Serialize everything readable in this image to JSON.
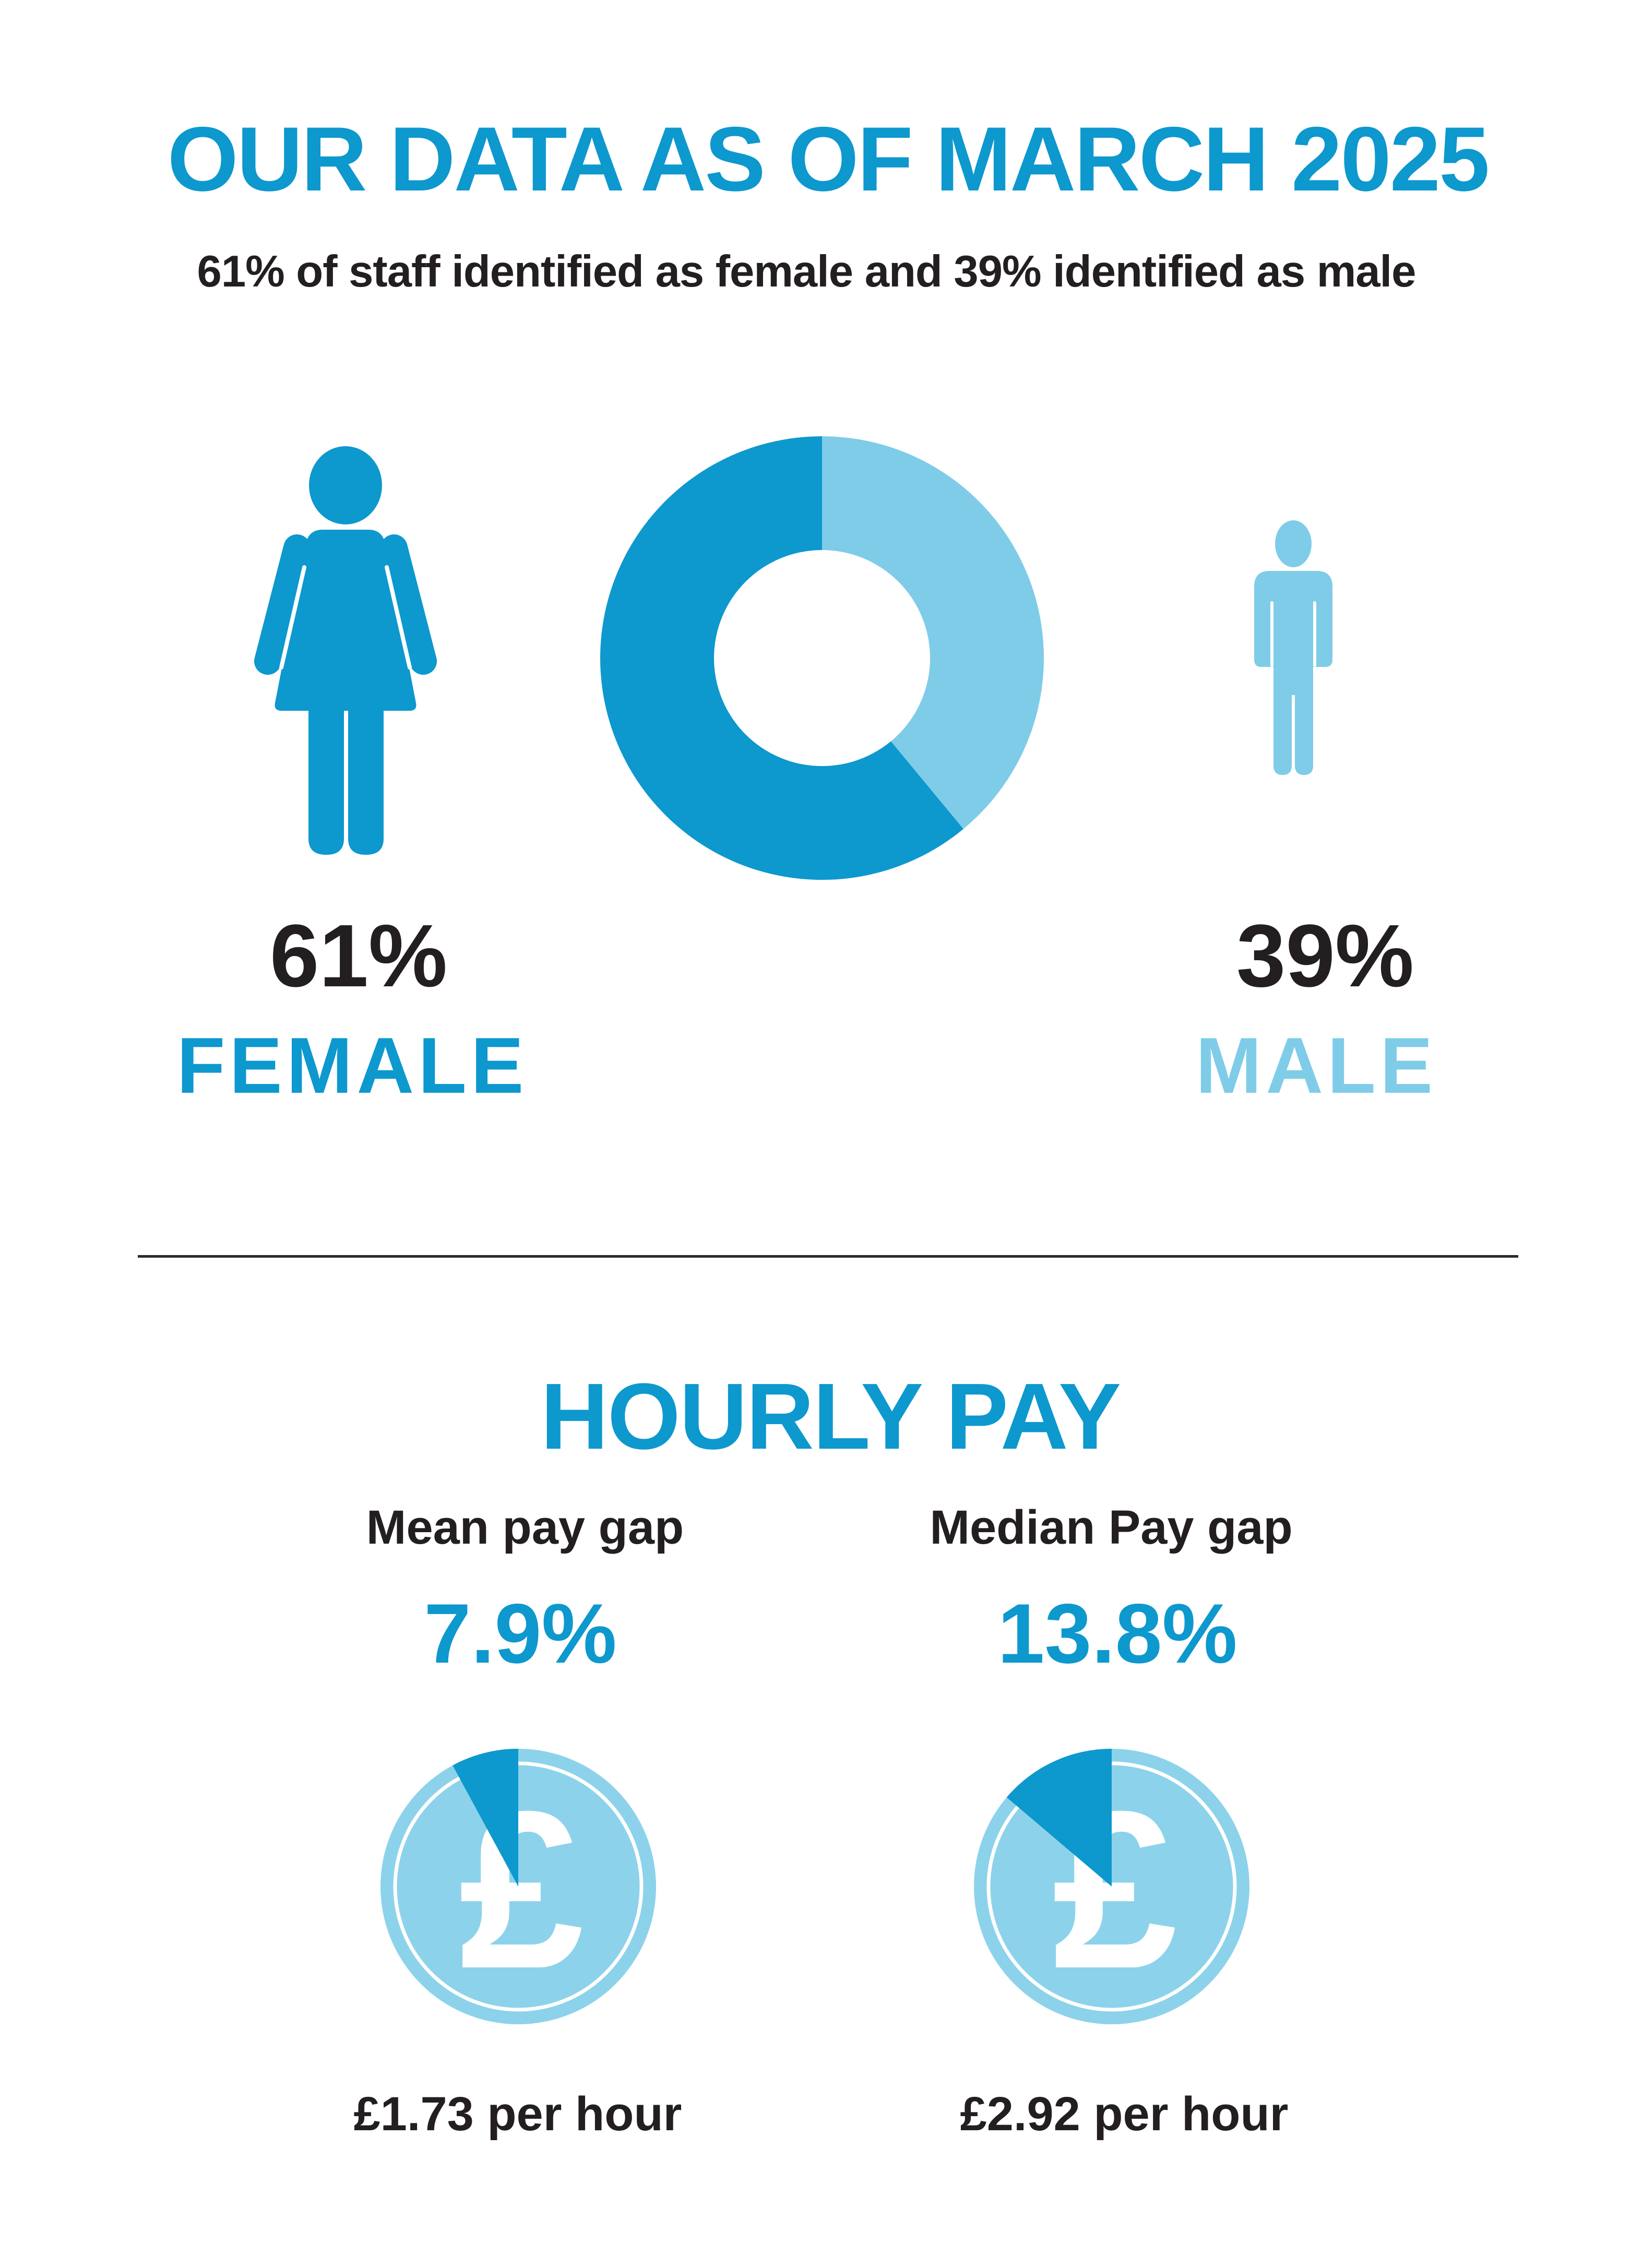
{
  "colors": {
    "brand_blue": "#0D98CE",
    "light_blue": "#7FCCE8",
    "coin_blue": "#8DD2EB",
    "text_dark": "#231F20"
  },
  "header": {
    "title": "OUR DATA AS OF MARCH 2025",
    "subtitle": "61% of staff identified as female and 39% identified as male"
  },
  "gender_split": {
    "female": {
      "percent": "61%",
      "label": "FEMALE",
      "value": 61
    },
    "male": {
      "percent": "39%",
      "label": "MALE",
      "value": 39
    }
  },
  "icons": {
    "female": "female-figure-icon",
    "male": "male-figure-icon",
    "coin": "pound-coin-icon"
  },
  "hourly_pay": {
    "heading": "HOURLY PAY",
    "currency_symbol": "£",
    "mean": {
      "label": "Mean pay gap",
      "value": 7.9,
      "value_label": "7.9%",
      "per_hour": "£1.73 per hour"
    },
    "median": {
      "label": "Median Pay gap",
      "value": 13.8,
      "value_label": "13.8%",
      "per_hour": "£2.92 per hour"
    }
  },
  "chart_data": [
    {
      "id": "gender_donut",
      "type": "pie",
      "donut": true,
      "title": "Staff gender split",
      "start_angle": "top",
      "direction": "clockwise",
      "unit": "%",
      "slices": [
        {
          "label": "Male",
          "value": 39,
          "color": "#7FCCE8"
        },
        {
          "label": "Female",
          "value": 61,
          "color": "#0D98CE"
        }
      ]
    },
    {
      "id": "mean_pay_gap_coin",
      "type": "pie",
      "title": "Mean pay gap",
      "start_angle": "top",
      "direction": "counterclockwise",
      "unit": "%",
      "slices": [
        {
          "label": "Mean pay gap",
          "value": 7.9,
          "color": "#0D98CE"
        },
        {
          "label": "Remainder",
          "value": 92.1,
          "color": "#8DD2EB"
        }
      ]
    },
    {
      "id": "median_pay_gap_coin",
      "type": "pie",
      "title": "Median pay gap",
      "start_angle": "top",
      "direction": "counterclockwise",
      "unit": "%",
      "slices": [
        {
          "label": "Median pay gap",
          "value": 13.8,
          "color": "#0D98CE"
        },
        {
          "label": "Remainder",
          "value": 86.2,
          "color": "#8DD2EB"
        }
      ]
    }
  ]
}
